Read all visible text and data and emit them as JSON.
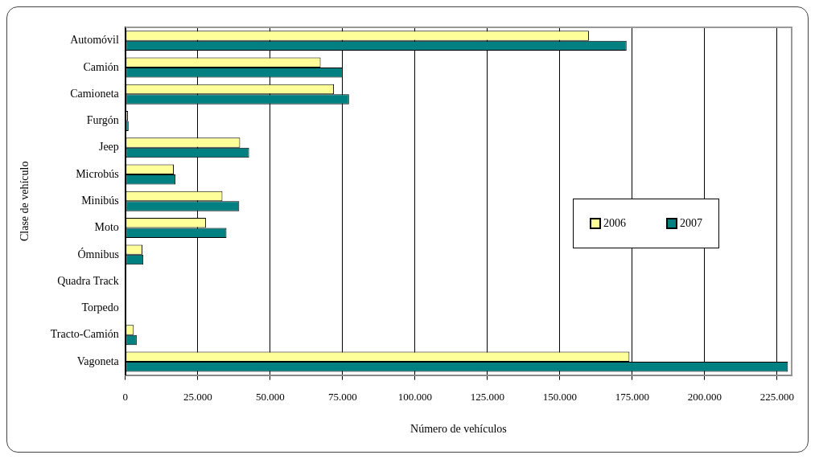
{
  "chart_data": {
    "type": "bar",
    "orientation": "horizontal",
    "xlabel": "Número de vehículos",
    "ylabel": "Clase de vehículo",
    "categories": [
      "Automóvil",
      "Camión",
      "Camioneta",
      "Furgón",
      "Jeep",
      "Microbús",
      "Minibús",
      "Moto",
      "Ómnibus",
      "Quadra Track",
      "Torpedo",
      "Tracto-Camión",
      "Vagoneta"
    ],
    "series": [
      {
        "name": "2006",
        "color": "#ffff99",
        "values": [
          160000,
          67400,
          72000,
          900,
          39600,
          16700,
          33500,
          27800,
          5900,
          0,
          0,
          2900,
          174000
        ]
      },
      {
        "name": "2007",
        "color": "#008080",
        "values": [
          173000,
          75000,
          77200,
          1100,
          42700,
          17300,
          39300,
          34900,
          6200,
          0,
          0,
          3900,
          228700
        ]
      }
    ],
    "xlim": [
      0,
      230000
    ],
    "xticks": [
      0,
      {
        "value": 25000,
        "label": "25.000"
      },
      {
        "value": 50000,
        "label": "50.000"
      },
      {
        "value": 75000,
        "label": "75.000"
      },
      {
        "value": 100000,
        "label": "100.000"
      },
      {
        "value": 125000,
        "label": "125.000"
      },
      {
        "value": 150000,
        "label": "150.000"
      },
      {
        "value": 175000,
        "label": "175.000"
      },
      {
        "value": 200000,
        "label": "200.000"
      },
      {
        "value": 225000,
        "label": "225.000"
      }
    ],
    "grid": "x",
    "legend": "right"
  }
}
